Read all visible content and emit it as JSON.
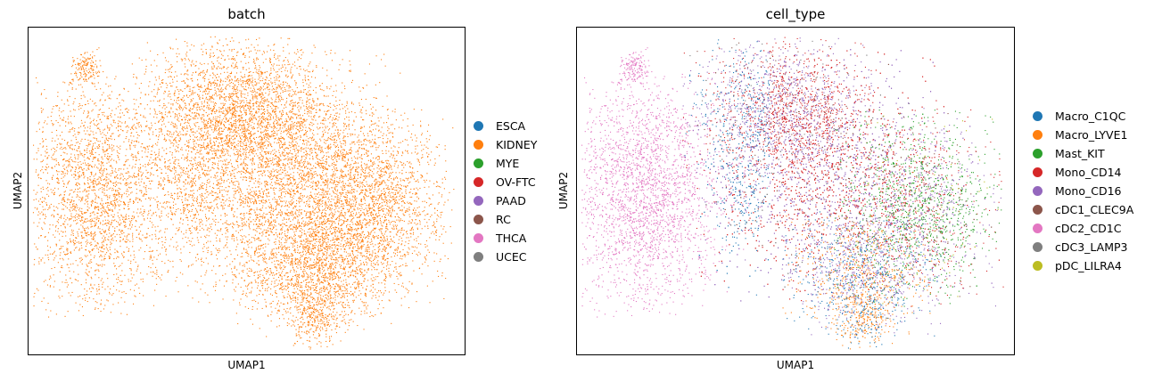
{
  "chart_data": [
    {
      "type": "scatter",
      "title": "batch",
      "xlabel": "UMAP1",
      "ylabel": "UMAP2",
      "grid": false,
      "legend": {
        "placement": "right",
        "entries": [
          {
            "label": "ESCA",
            "color": "#1f77b4"
          },
          {
            "label": "KIDNEY",
            "color": "#ff7f0e"
          },
          {
            "label": "MYE",
            "color": "#2ca02c"
          },
          {
            "label": "OV-FTC",
            "color": "#d62728"
          },
          {
            "label": "PAAD",
            "color": "#9467bd"
          },
          {
            "label": "RC",
            "color": "#8c564b"
          },
          {
            "label": "THCA",
            "color": "#e377c2"
          },
          {
            "label": "UCEC",
            "color": "#7f7f7f"
          }
        ]
      }
    },
    {
      "type": "scatter",
      "title": "cell_type",
      "xlabel": "UMAP1",
      "ylabel": "UMAP2",
      "grid": false,
      "legend": {
        "placement": "right",
        "entries": [
          {
            "label": "Macro_C1QC",
            "color": "#1f77b4"
          },
          {
            "label": "Macro_LYVE1",
            "color": "#ff7f0e"
          },
          {
            "label": "Mast_KIT",
            "color": "#2ca02c"
          },
          {
            "label": "Mono_CD14",
            "color": "#d62728"
          },
          {
            "label": "Mono_CD16",
            "color": "#9467bd"
          },
          {
            "label": "cDC1_CLEC9A",
            "color": "#8c564b"
          },
          {
            "label": "cDC2_CD1C",
            "color": "#e377c2"
          },
          {
            "label": "cDC3_LAMP3",
            "color": "#7f7f7f"
          },
          {
            "label": "pDC_LILRA4",
            "color": "#bcbd22"
          }
        ]
      }
    }
  ]
}
